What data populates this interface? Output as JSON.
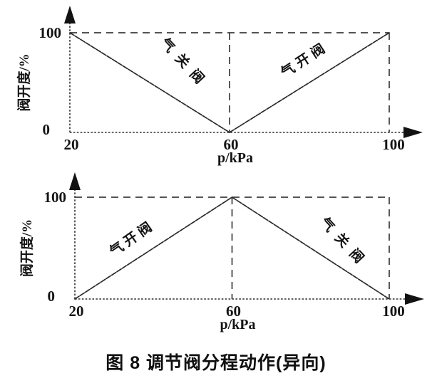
{
  "caption": "图 8  调节阀分程动作(异向)",
  "colors": {
    "ink": "#141414",
    "background": "#ffffff"
  },
  "chart_data": [
    {
      "type": "line",
      "title": "",
      "xlabel": "p/kPa",
      "ylabel": "阀开度/%",
      "xlim": [
        20,
        100
      ],
      "ylim": [
        0,
        100
      ],
      "x_ticks": [
        "20",
        "60",
        "100"
      ],
      "y_ticks": [
        "0",
        "100"
      ],
      "grid": false,
      "legend_position": "none",
      "reference_lines": {
        "style": "dashed",
        "horizontal_y": 100,
        "vertical_x": [
          60,
          100
        ]
      },
      "series": [
        {
          "name": "气关阀",
          "x": [
            20,
            60
          ],
          "y": [
            100,
            0
          ]
        },
        {
          "name": "气开阀",
          "x": [
            60,
            100
          ],
          "y": [
            0,
            100
          ]
        }
      ]
    },
    {
      "type": "line",
      "title": "",
      "xlabel": "p/kPa",
      "ylabel": "阀开度/%",
      "xlim": [
        20,
        100
      ],
      "ylim": [
        0,
        100
      ],
      "x_ticks": [
        "20",
        "60",
        "100"
      ],
      "y_ticks": [
        "0",
        "100"
      ],
      "grid": false,
      "legend_position": "none",
      "reference_lines": {
        "style": "dashed",
        "horizontal_y": 100,
        "vertical_x": [
          60,
          100
        ]
      },
      "series": [
        {
          "name": "气开阀",
          "x": [
            20,
            60
          ],
          "y": [
            0,
            100
          ]
        },
        {
          "name": "气关阀",
          "x": [
            60,
            100
          ],
          "y": [
            100,
            0
          ]
        }
      ]
    }
  ]
}
